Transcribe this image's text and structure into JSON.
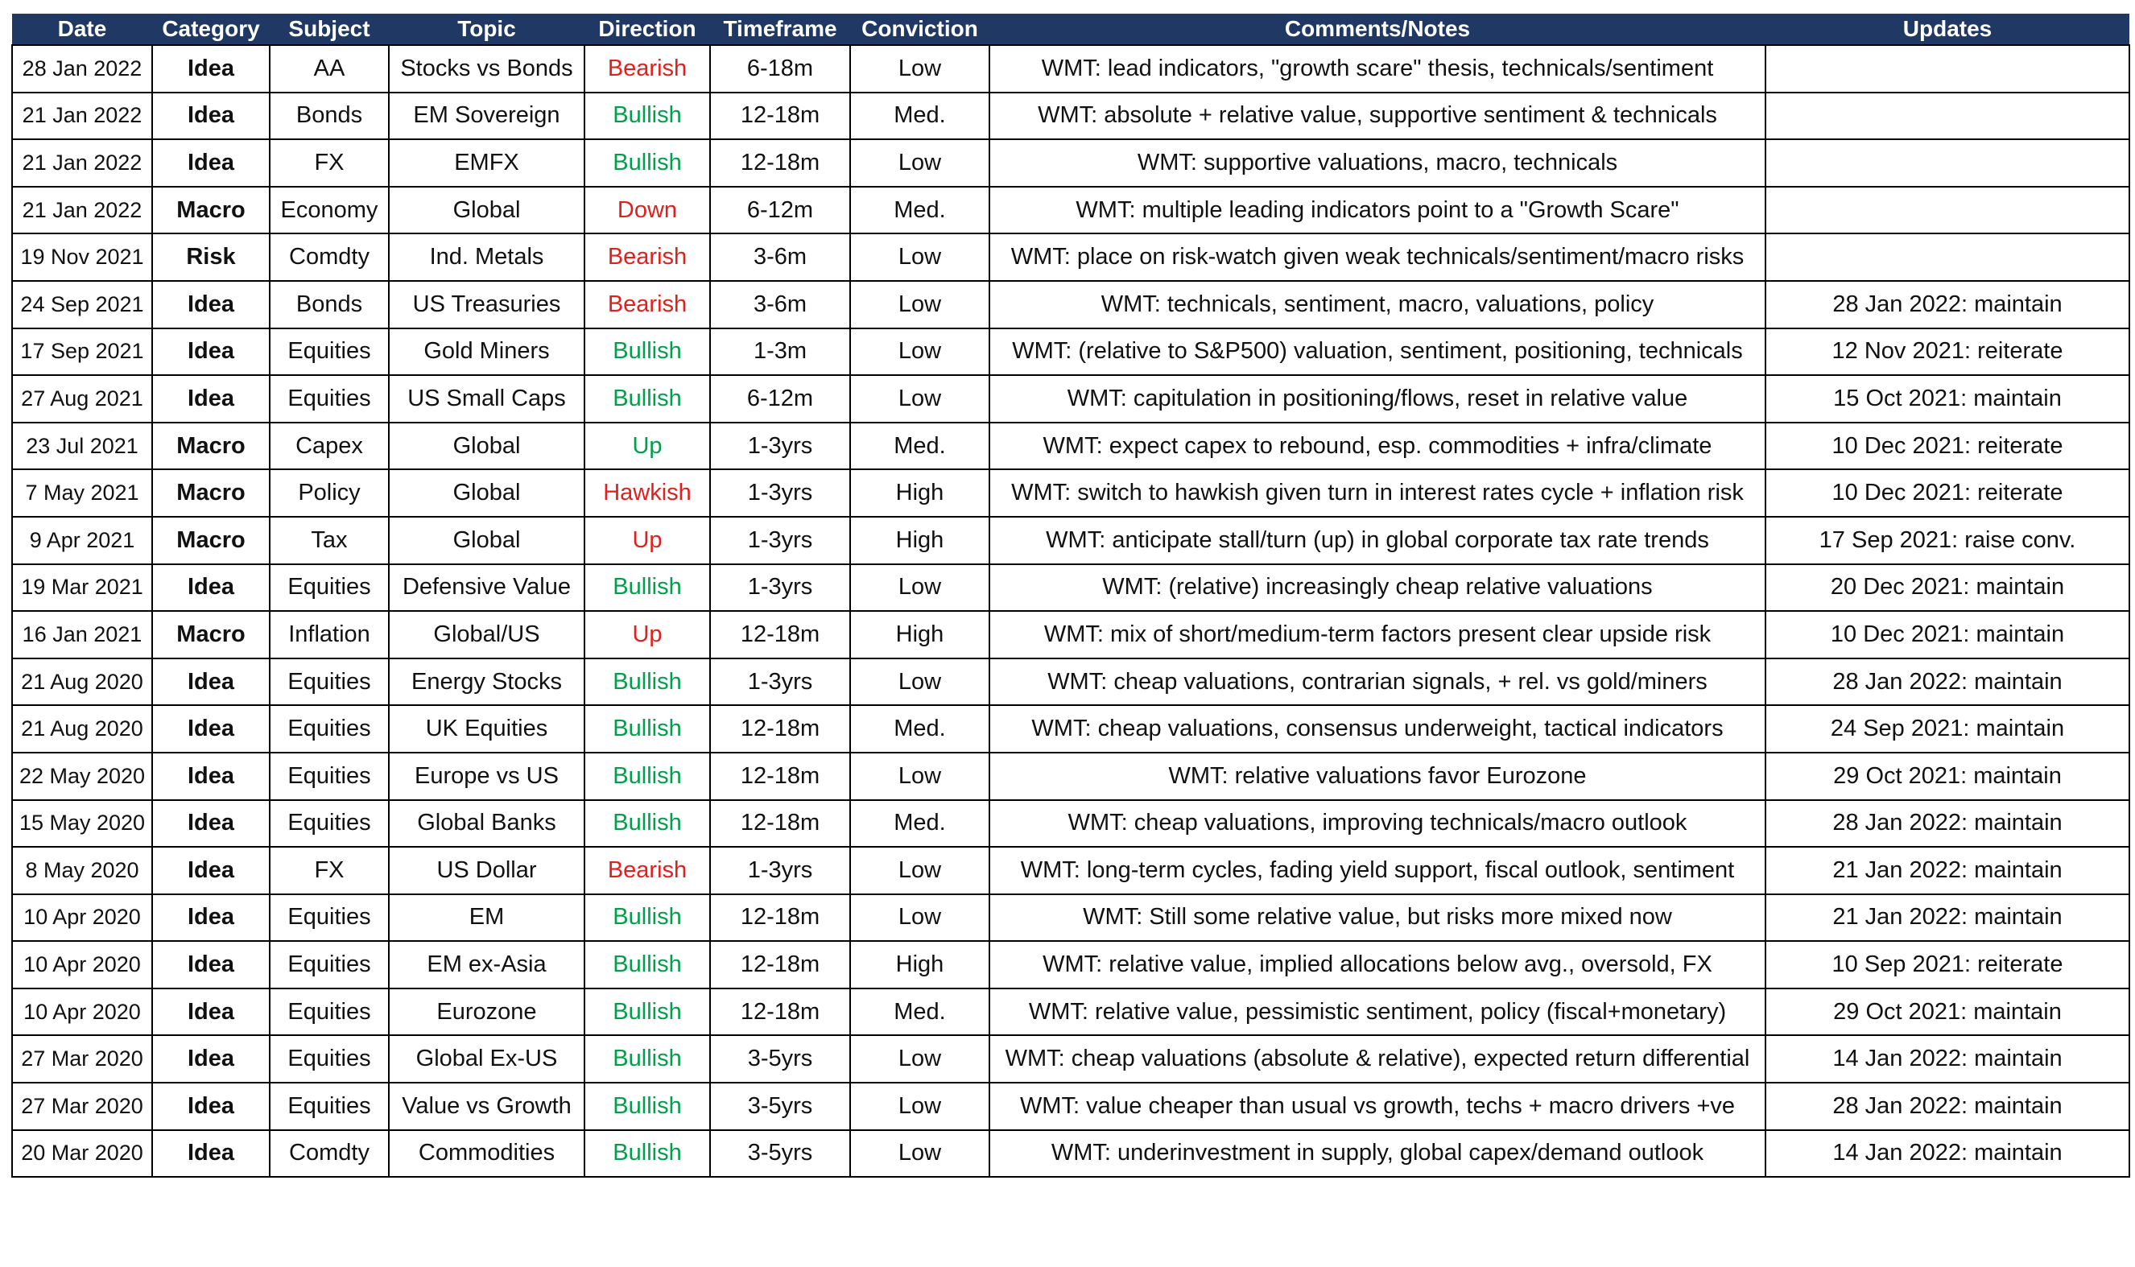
{
  "headers": [
    "Date",
    "Category",
    "Subject",
    "Topic",
    "Direction",
    "Timeframe",
    "Conviction",
    "Comments/Notes",
    "Updates"
  ],
  "colors": {
    "header_bg": "#1f3864",
    "positive": "#00a04a",
    "negative": "#e0201c"
  },
  "rows": [
    {
      "date": "28 Jan 2022",
      "category": "Idea",
      "subject": "AA",
      "topic": "Stocks vs Bonds",
      "direction": "Bearish",
      "tone": "neg",
      "timeframe": "6-18m",
      "conviction": "Low",
      "comments": "WMT: lead indicators, \"growth scare\" thesis, technicals/sentiment",
      "updates": ""
    },
    {
      "date": "21 Jan 2022",
      "category": "Idea",
      "subject": "Bonds",
      "topic": "EM Sovereign",
      "direction": "Bullish",
      "tone": "pos",
      "timeframe": "12-18m",
      "conviction": "Med.",
      "comments": "WMT: absolute + relative value, supportive sentiment & technicals",
      "updates": ""
    },
    {
      "date": "21 Jan 2022",
      "category": "Idea",
      "subject": "FX",
      "topic": "EMFX",
      "direction": "Bullish",
      "tone": "pos",
      "timeframe": "12-18m",
      "conviction": "Low",
      "comments": "WMT: supportive valuations, macro, technicals",
      "updates": ""
    },
    {
      "date": "21 Jan 2022",
      "category": "Macro",
      "subject": "Economy",
      "topic": "Global",
      "direction": "Down",
      "tone": "neg",
      "timeframe": "6-12m",
      "conviction": "Med.",
      "comments": "WMT: multiple leading indicators point to a \"Growth Scare\"",
      "updates": ""
    },
    {
      "date": "19 Nov 2021",
      "category": "Risk",
      "subject": "Comdty",
      "topic": "Ind. Metals",
      "direction": "Bearish",
      "tone": "neg",
      "timeframe": "3-6m",
      "conviction": "Low",
      "comments": "WMT: place on risk-watch given weak technicals/sentiment/macro risks",
      "updates": ""
    },
    {
      "date": "24 Sep 2021",
      "category": "Idea",
      "subject": "Bonds",
      "topic": "US Treasuries",
      "direction": "Bearish",
      "tone": "neg",
      "timeframe": "3-6m",
      "conviction": "Low",
      "comments": "WMT: technicals, sentiment, macro, valuations, policy",
      "updates": "28 Jan 2022: maintain"
    },
    {
      "date": "17 Sep 2021",
      "category": "Idea",
      "subject": "Equities",
      "topic": "Gold Miners",
      "direction": "Bullish",
      "tone": "pos",
      "timeframe": "1-3m",
      "conviction": "Low",
      "comments": "WMT: (relative to S&P500) valuation, sentiment, positioning, technicals",
      "updates": "12 Nov 2021: reiterate"
    },
    {
      "date": "27 Aug 2021",
      "category": "Idea",
      "subject": "Equities",
      "topic": "US Small Caps",
      "direction": "Bullish",
      "tone": "pos",
      "timeframe": "6-12m",
      "conviction": "Low",
      "comments": "WMT: capitulation in positioning/flows, reset in relative value",
      "updates": "15 Oct 2021: maintain"
    },
    {
      "date": "23 Jul 2021",
      "category": "Macro",
      "subject": "Capex",
      "topic": "Global",
      "direction": "Up",
      "tone": "pos",
      "timeframe": "1-3yrs",
      "conviction": "Med.",
      "comments": "WMT: expect capex to rebound, esp. commodities + infra/climate",
      "updates": "10 Dec 2021: reiterate"
    },
    {
      "date": "7 May 2021",
      "category": "Macro",
      "subject": "Policy",
      "topic": "Global",
      "direction": "Hawkish",
      "tone": "neg",
      "timeframe": "1-3yrs",
      "conviction": "High",
      "comments": "WMT: switch to hawkish given turn in interest rates cycle + inflation risk",
      "updates": "10 Dec 2021: reiterate"
    },
    {
      "date": "9 Apr 2021",
      "category": "Macro",
      "subject": "Tax",
      "topic": "Global",
      "direction": "Up",
      "tone": "neg",
      "timeframe": "1-3yrs",
      "conviction": "High",
      "comments": "WMT: anticipate stall/turn (up) in global corporate tax rate trends",
      "updates": "17 Sep 2021: raise conv."
    },
    {
      "date": "19 Mar 2021",
      "category": "Idea",
      "subject": "Equities",
      "topic": "Defensive Value",
      "direction": "Bullish",
      "tone": "pos",
      "timeframe": "1-3yrs",
      "conviction": "Low",
      "comments": "WMT: (relative) increasingly cheap relative valuations",
      "updates": "20 Dec 2021: maintain"
    },
    {
      "date": "16 Jan 2021",
      "category": "Macro",
      "subject": "Inflation",
      "topic": "Global/US",
      "direction": "Up",
      "tone": "neg",
      "timeframe": "12-18m",
      "conviction": "High",
      "comments": "WMT: mix of short/medium-term factors present clear upside risk",
      "updates": "10 Dec 2021: maintain"
    },
    {
      "date": "21 Aug 2020",
      "category": "Idea",
      "subject": "Equities",
      "topic": "Energy Stocks",
      "direction": "Bullish",
      "tone": "pos",
      "timeframe": "1-3yrs",
      "conviction": "Low",
      "comments": "WMT: cheap valuations, contrarian signals, + rel. vs gold/miners",
      "updates": "28 Jan 2022: maintain"
    },
    {
      "date": "21 Aug 2020",
      "category": "Idea",
      "subject": "Equities",
      "topic": "UK Equities",
      "direction": "Bullish",
      "tone": "pos",
      "timeframe": "12-18m",
      "conviction": "Med.",
      "comments": "WMT: cheap valuations, consensus underweight, tactical indicators",
      "updates": "24 Sep 2021: maintain"
    },
    {
      "date": "22 May 2020",
      "category": "Idea",
      "subject": "Equities",
      "topic": "Europe vs US",
      "direction": "Bullish",
      "tone": "pos",
      "timeframe": "12-18m",
      "conviction": "Low",
      "comments": "WMT: relative valuations favor Eurozone",
      "updates": "29 Oct 2021: maintain"
    },
    {
      "date": "15 May 2020",
      "category": "Idea",
      "subject": "Equities",
      "topic": "Global Banks",
      "direction": "Bullish",
      "tone": "pos",
      "timeframe": "12-18m",
      "conviction": "Med.",
      "comments": "WMT: cheap valuations, improving technicals/macro outlook",
      "updates": "28 Jan 2022: maintain"
    },
    {
      "date": "8 May 2020",
      "category": "Idea",
      "subject": "FX",
      "topic": "US Dollar",
      "direction": "Bearish",
      "tone": "neg",
      "timeframe": "1-3yrs",
      "conviction": "Low",
      "comments": "WMT: long-term cycles, fading yield support, fiscal outlook, sentiment",
      "updates": "21 Jan 2022: maintain"
    },
    {
      "date": "10 Apr 2020",
      "category": "Idea",
      "subject": "Equities",
      "topic": "EM",
      "direction": "Bullish",
      "tone": "pos",
      "timeframe": "12-18m",
      "conviction": "Low",
      "comments": "WMT: Still some relative value, but risks more mixed now",
      "updates": "21 Jan 2022: maintain"
    },
    {
      "date": "10 Apr 2020",
      "category": "Idea",
      "subject": "Equities",
      "topic": "EM ex-Asia",
      "direction": "Bullish",
      "tone": "pos",
      "timeframe": "12-18m",
      "conviction": "High",
      "comments": "WMT: relative value, implied allocations below avg., oversold, FX",
      "updates": "10 Sep 2021: reiterate"
    },
    {
      "date": "10 Apr 2020",
      "category": "Idea",
      "subject": "Equities",
      "topic": "Eurozone",
      "direction": "Bullish",
      "tone": "pos",
      "timeframe": "12-18m",
      "conviction": "Med.",
      "comments": "WMT: relative value, pessimistic sentiment, policy (fiscal+monetary)",
      "updates": "29 Oct 2021: maintain"
    },
    {
      "date": "27 Mar 2020",
      "category": "Idea",
      "subject": "Equities",
      "topic": "Global Ex-US",
      "direction": "Bullish",
      "tone": "pos",
      "timeframe": "3-5yrs",
      "conviction": "Low",
      "comments": "WMT: cheap valuations (absolute & relative), expected return differential",
      "updates": "14 Jan 2022: maintain"
    },
    {
      "date": "27 Mar 2020",
      "category": "Idea",
      "subject": "Equities",
      "topic": "Value vs Growth",
      "direction": "Bullish",
      "tone": "pos",
      "timeframe": "3-5yrs",
      "conviction": "Low",
      "comments": "WMT: value cheaper than usual vs growth, techs + macro drivers +ve",
      "updates": "28 Jan 2022: maintain"
    },
    {
      "date": "20 Mar 2020",
      "category": "Idea",
      "subject": "Comdty",
      "topic": "Commodities",
      "direction": "Bullish",
      "tone": "pos",
      "timeframe": "3-5yrs",
      "conviction": "Low",
      "comments": "WMT: underinvestment in supply, global capex/demand outlook",
      "updates": "14 Jan 2022: maintain"
    }
  ]
}
